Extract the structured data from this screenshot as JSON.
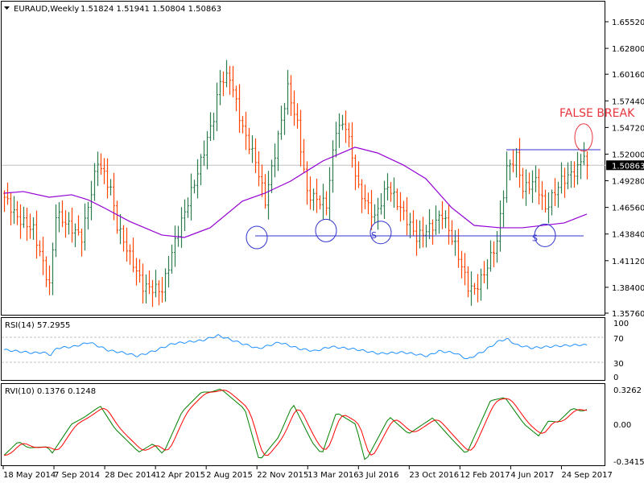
{
  "header": {
    "symbol": "EURAUD,Weekly",
    "ohlc": "1.51824 1.51941 1.50804 1.50863"
  },
  "colors": {
    "up_bar": "#2e7d4f",
    "down_bar": "#ff4500",
    "ma": "#9400d3",
    "annotation": "#3333cc",
    "false_break": "#e8343c",
    "rsi": "#1e90ff",
    "rvi_main": "#008000",
    "rvi_signal": "#ff0000"
  },
  "chart_data": [
    {
      "type": "ohlc",
      "title": "EURAUD,Weekly",
      "current_price": "1.50863",
      "ylim": [
        1.3576,
        1.6552
      ],
      "price_ticks": [
        "1.65520",
        "1.62800",
        "1.60160",
        "1.57440",
        "1.54720",
        "1.52000",
        "1.49280",
        "1.46560",
        "1.43840",
        "1.41120",
        "1.38400",
        "1.35760"
      ],
      "x_tick_labels": [
        "18 May 2014",
        "7 Sep 2014",
        "28 Dec 2014",
        "12 Apr 2015",
        "2 Aug 2015",
        "22 Nov 2015",
        "13 Mar 2016",
        "3 Jul 2016",
        "23 Oct 2016",
        "12 Feb 2017",
        "4 Jun 2017",
        "24 Sep 2017"
      ],
      "weeks_between_x_ticks": 16,
      "close_anchors_week_price": [
        [
          0,
          1.476
        ],
        [
          4,
          1.455
        ],
        [
          9,
          1.443
        ],
        [
          14,
          1.385
        ],
        [
          16,
          1.459
        ],
        [
          24,
          1.435
        ],
        [
          29,
          1.513
        ],
        [
          33,
          1.484
        ],
        [
          35,
          1.447
        ],
        [
          43,
          1.385
        ],
        [
          49,
          1.381
        ],
        [
          53,
          1.431
        ],
        [
          60,
          1.501
        ],
        [
          65,
          1.558
        ],
        [
          67,
          1.595
        ],
        [
          70,
          1.599
        ],
        [
          74,
          1.546
        ],
        [
          78,
          1.513
        ],
        [
          81,
          1.472
        ],
        [
          84,
          1.521
        ],
        [
          88,
          1.587
        ],
        [
          91,
          1.55
        ],
        [
          94,
          1.48
        ],
        [
          100,
          1.468
        ],
        [
          103,
          1.546
        ],
        [
          106,
          1.55
        ],
        [
          110,
          1.484
        ],
        [
          115,
          1.455
        ],
        [
          119,
          1.488
        ],
        [
          124,
          1.459
        ],
        [
          128,
          1.435
        ],
        [
          133,
          1.447
        ],
        [
          136,
          1.459
        ],
        [
          140,
          1.426
        ],
        [
          144,
          1.385
        ],
        [
          146,
          1.381
        ],
        [
          149,
          1.398
        ],
        [
          153,
          1.431
        ],
        [
          156,
          1.505
        ],
        [
          159,
          1.517
        ],
        [
          161,
          1.484
        ],
        [
          165,
          1.493
        ],
        [
          168,
          1.464
        ],
        [
          173,
          1.493
        ],
        [
          175,
          1.497
        ],
        [
          178,
          1.505
        ],
        [
          180,
          1.521
        ],
        [
          181,
          1.50863
        ]
      ],
      "moving_average_week_price": [
        [
          0,
          1.4801
        ],
        [
          6,
          1.4818
        ],
        [
          14,
          1.476
        ],
        [
          21,
          1.4785
        ],
        [
          26,
          1.4735
        ],
        [
          31,
          1.4653
        ],
        [
          39,
          1.4513
        ],
        [
          49,
          1.4374
        ],
        [
          56,
          1.4349
        ],
        [
          64,
          1.4448
        ],
        [
          74,
          1.4719
        ],
        [
          81,
          1.4801
        ],
        [
          89,
          1.4924
        ],
        [
          99,
          1.513
        ],
        [
          109,
          1.527
        ],
        [
          116,
          1.5212
        ],
        [
          124,
          1.5089
        ],
        [
          131,
          1.4949
        ],
        [
          139,
          1.4653
        ],
        [
          146,
          1.4472
        ],
        [
          154,
          1.4448
        ],
        [
          161,
          1.4448
        ],
        [
          174,
          1.4497
        ],
        [
          181,
          1.4588
        ]
      ],
      "annotations": {
        "support_line": {
          "price": 1.4365,
          "from_week": 78,
          "to_week": 180
        },
        "resistance_line": {
          "price": 1.5245,
          "from_week": 156,
          "to_week": 186
        },
        "support_circles": [
          [
            78.5,
            1.4349
          ],
          [
            100,
            1.442
          ],
          [
            117,
            1.44
          ],
          [
            168,
            1.437
          ]
        ],
        "false_break_circle": [
          180,
          1.537
        ],
        "false_break_label": "FALSE BREAK",
        "s_labels": [
          {
            "text": "S",
            "week": 114,
            "price": 1.434
          },
          {
            "text": "S",
            "week": 164,
            "price": 1.431
          }
        ]
      }
    },
    {
      "type": "line",
      "title": "RSI(14) 57.2955",
      "ylim": [
        0,
        100
      ],
      "levels": [
        30,
        70
      ],
      "tick_labels": [
        "100",
        "70",
        "30",
        "0"
      ],
      "anchors_week_value": [
        [
          0,
          50
        ],
        [
          9,
          45
        ],
        [
          12,
          46
        ],
        [
          14.5,
          42
        ],
        [
          16.5,
          53
        ],
        [
          21.5,
          55
        ],
        [
          26.5,
          62
        ],
        [
          32.5,
          49
        ],
        [
          37.5,
          45
        ],
        [
          41.5,
          40
        ],
        [
          46.5,
          48
        ],
        [
          52.5,
          60
        ],
        [
          61.5,
          65
        ],
        [
          66.5,
          73
        ],
        [
          74,
          60
        ],
        [
          79,
          52
        ],
        [
          85.5,
          62
        ],
        [
          91.5,
          52
        ],
        [
          96.5,
          48
        ],
        [
          101.5,
          55
        ],
        [
          109,
          51
        ],
        [
          116.5,
          44
        ],
        [
          124,
          46
        ],
        [
          131.5,
          40
        ],
        [
          135,
          48
        ],
        [
          140,
          45
        ],
        [
          144,
          35
        ],
        [
          149,
          48
        ],
        [
          154,
          65
        ],
        [
          156.5,
          67
        ],
        [
          159,
          58
        ],
        [
          164,
          53
        ],
        [
          171.5,
          56
        ],
        [
          179,
          58
        ],
        [
          181,
          57.2955
        ]
      ]
    },
    {
      "type": "line",
      "title": "RVI(10) 0.1376 0.1248",
      "ylim": [
        -0.3415,
        0.3262
      ],
      "tick_labels": [
        "0.3262",
        "0.00",
        "-0.3415"
      ],
      "main_anchors_week_value": [
        [
          0,
          -0.29
        ],
        [
          3,
          -0.16
        ],
        [
          5,
          -0.22
        ],
        [
          9,
          -0.21
        ],
        [
          10,
          -0.27
        ],
        [
          14,
          0.0
        ],
        [
          16.5,
          0.06
        ],
        [
          20,
          0.17
        ],
        [
          23,
          -0.04
        ],
        [
          28,
          -0.26
        ],
        [
          31,
          -0.18
        ],
        [
          33,
          -0.28
        ],
        [
          37,
          0.12
        ],
        [
          41,
          0.3
        ],
        [
          43,
          0.3
        ],
        [
          45,
          0.33
        ],
        [
          50,
          0.14
        ],
        [
          53,
          -0.34
        ],
        [
          57,
          -0.12
        ],
        [
          60,
          0.19
        ],
        [
          64,
          -0.17
        ],
        [
          66,
          -0.28
        ],
        [
          69,
          0.11
        ],
        [
          73,
          0.0
        ],
        [
          75,
          -0.35
        ],
        [
          80,
          0.07
        ],
        [
          84,
          -0.09
        ],
        [
          89,
          0.06
        ],
        [
          93,
          -0.14
        ],
        [
          96,
          -0.28
        ],
        [
          101,
          0.22
        ],
        [
          104,
          0.25
        ],
        [
          108,
          0.0
        ],
        [
          111,
          -0.11
        ],
        [
          113,
          0.03
        ],
        [
          115,
          0.02
        ],
        [
          118,
          0.15
        ],
        [
          120,
          0.12
        ],
        [
          121,
          0.1376
        ]
      ]
    }
  ]
}
